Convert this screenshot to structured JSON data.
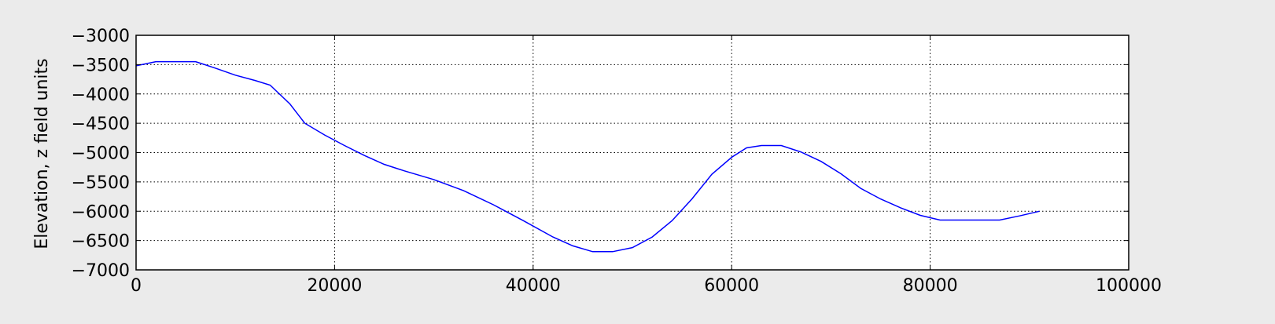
{
  "chart_data": {
    "type": "line",
    "title": "",
    "xlabel": "",
    "ylabel": "Elevation, z field units",
    "xlim": [
      0,
      100000
    ],
    "ylim": [
      -7000,
      -3000
    ],
    "xticks": [
      0,
      20000,
      40000,
      60000,
      80000,
      100000
    ],
    "xtick_labels": [
      "0",
      "20000",
      "40000",
      "60000",
      "80000",
      "100000"
    ],
    "yticks": [
      -3000,
      -3500,
      -4000,
      -4500,
      -5000,
      -5500,
      -6000,
      -6500,
      -7000
    ],
    "ytick_labels": [
      "−3000",
      "−3500",
      "−4000",
      "−4500",
      "−5000",
      "−5500",
      "−6000",
      "−6500",
      "−7000"
    ],
    "grid": true,
    "legend": "none",
    "line_color": "#0000ff",
    "background_color": "#ebebeb",
    "series": [
      {
        "x": [
          0,
          2000,
          4000,
          6000,
          8000,
          10000,
          12000,
          13500,
          15500,
          17000,
          19000,
          21000,
          23000,
          25000,
          27000,
          30000,
          33000,
          36000,
          39000,
          42000,
          44000,
          46000,
          48000,
          50000,
          52000,
          54000,
          56000,
          58000,
          60000,
          61500,
          63000,
          65000,
          67000,
          69000,
          71000,
          73000,
          75000,
          77000,
          79000,
          81000,
          83000,
          85000,
          87000,
          89000,
          91000
        ],
        "y": [
          -3520,
          -3450,
          -3450,
          -3450,
          -3560,
          -3680,
          -3770,
          -3850,
          -4170,
          -4500,
          -4700,
          -4880,
          -5050,
          -5200,
          -5310,
          -5460,
          -5650,
          -5890,
          -6160,
          -6440,
          -6590,
          -6690,
          -6690,
          -6620,
          -6440,
          -6160,
          -5790,
          -5370,
          -5080,
          -4920,
          -4880,
          -4880,
          -4990,
          -5150,
          -5360,
          -5610,
          -5790,
          -5940,
          -6070,
          -6150,
          -6150,
          -6150,
          -6150,
          -6080,
          -6000
        ]
      }
    ]
  }
}
